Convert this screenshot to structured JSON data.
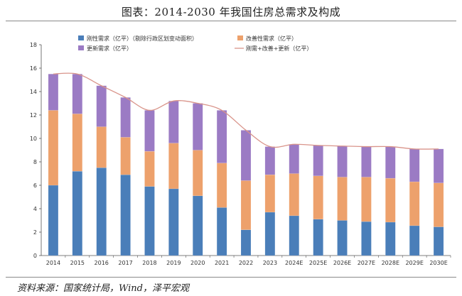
{
  "title": "图表：2014-2030 年我国住房总需求及构成",
  "source": "资料来源：国家统计局，Wind，泽平宏观",
  "chart_data": {
    "type": "bar",
    "stacked": true,
    "categories": [
      "2014",
      "2015",
      "2016",
      "2017",
      "2018",
      "2019",
      "2020",
      "2021",
      "2022",
      "2023",
      "2024E",
      "2025E",
      "2026E",
      "2027E",
      "2028E",
      "2029E",
      "2030E"
    ],
    "ylim": [
      0,
      18
    ],
    "yticks": [
      "0",
      "2",
      "4",
      "6",
      "8",
      "10",
      "12",
      "14",
      "16",
      "18"
    ],
    "series": [
      {
        "name": "刚性需求（亿平）（剔除行政区划变动面积）",
        "color": "#4a7eb9",
        "values": [
          6.0,
          7.2,
          7.5,
          6.9,
          5.9,
          5.7,
          5.1,
          4.1,
          2.2,
          3.7,
          3.4,
          3.1,
          3.0,
          2.9,
          2.85,
          2.55,
          2.45
        ]
      },
      {
        "name": "改善性需求（亿平）",
        "color": "#eda16c",
        "values": [
          6.4,
          4.9,
          3.5,
          3.2,
          3.0,
          3.9,
          3.9,
          3.8,
          4.2,
          3.2,
          3.6,
          3.7,
          3.7,
          3.8,
          3.75,
          3.75,
          3.75
        ]
      },
      {
        "name": "更新需求（亿平）",
        "color": "#9b7bc4",
        "values": [
          3.1,
          3.4,
          3.5,
          3.4,
          3.5,
          3.6,
          4.0,
          4.5,
          4.3,
          2.4,
          2.5,
          2.6,
          2.65,
          2.6,
          2.7,
          2.8,
          2.9
        ]
      }
    ],
    "line": {
      "name": "刚需+改善+更新（亿平）",
      "color": "#d9948a"
    }
  }
}
